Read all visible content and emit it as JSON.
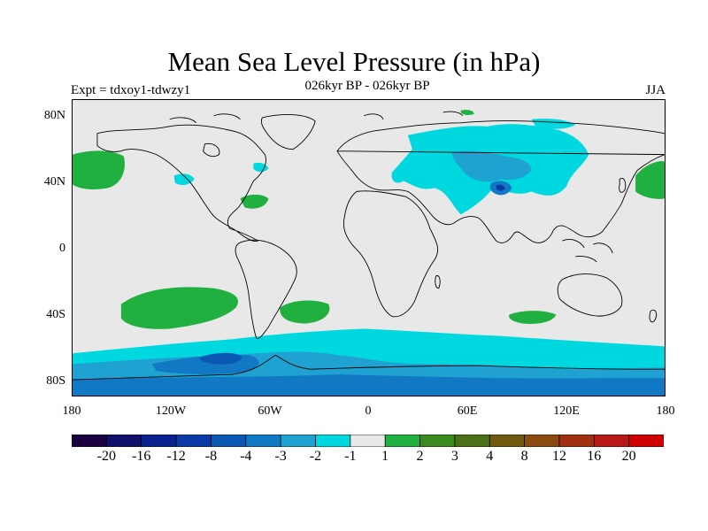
{
  "title": "Mean Sea Level Pressure (in hPa)",
  "subtitle": "026kyr BP - 026kyr BP",
  "expt_label": "Expt = tdxoy1-tdwzy1",
  "season": "JJA",
  "map": {
    "projection": "equirectangular",
    "background_color": "#e8e8e8",
    "coastline_color": "#000000",
    "lat_ticks": [
      {
        "value": 80,
        "label": "80N"
      },
      {
        "value": 40,
        "label": "40N"
      },
      {
        "value": 0,
        "label": "0"
      },
      {
        "value": -40,
        "label": "40S"
      },
      {
        "value": -80,
        "label": "80S"
      }
    ],
    "lon_ticks": [
      {
        "value": -180,
        "label": "180"
      },
      {
        "value": -120,
        "label": "120W"
      },
      {
        "value": -60,
        "label": "60W"
      },
      {
        "value": 0,
        "label": "0"
      },
      {
        "value": 60,
        "label": "60E"
      },
      {
        "value": 120,
        "label": "120E"
      },
      {
        "value": 180,
        "label": "180"
      }
    ]
  },
  "colorbar": {
    "colors": [
      "#1a0040",
      "#10106a",
      "#0a2290",
      "#0b3aa6",
      "#0b58b4",
      "#1178c4",
      "#1fa2d2",
      "#00d8e0",
      "#e8e8e8",
      "#20b040",
      "#3a8a20",
      "#4a7018",
      "#705a10",
      "#8a4a10",
      "#a03010",
      "#b81818",
      "#d00000"
    ],
    "labels": [
      "-20",
      "-16",
      "-12",
      "-8",
      "-4",
      "-3",
      "-2",
      "-1",
      "1",
      "2",
      "3",
      "4",
      "8",
      "12",
      "16",
      "20"
    ]
  }
}
